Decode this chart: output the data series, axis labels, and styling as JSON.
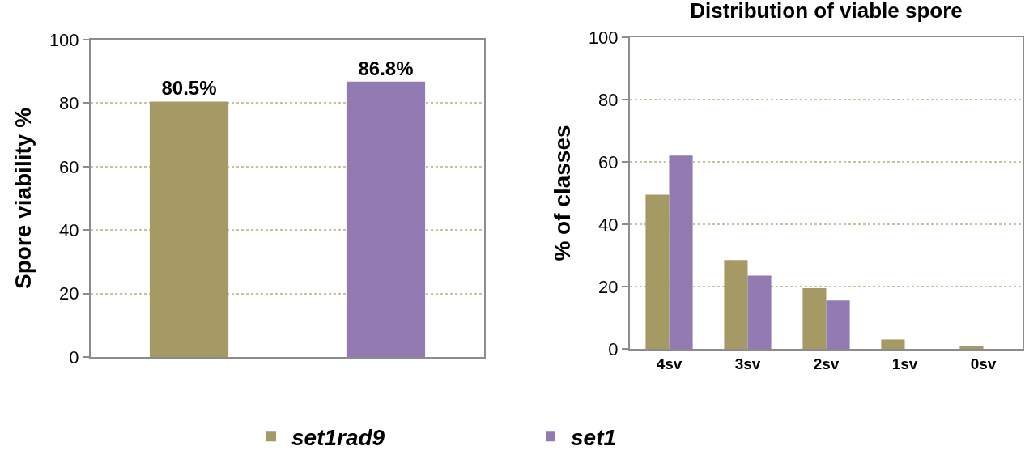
{
  "chart_data": [
    {
      "type": "bar",
      "ylabel": "Spore viability %",
      "categories": [
        null,
        null
      ],
      "values": [
        80.5,
        86.8
      ],
      "colors": [
        "#a59a63",
        "#927bb2"
      ],
      "value_labels": [
        "80.5%",
        "86.8%"
      ],
      "ylim": [
        0,
        100
      ],
      "yticks": [
        0,
        20,
        40,
        60,
        80,
        100
      ],
      "grid": "y"
    },
    {
      "type": "bar",
      "title": "Distribution of viable spore",
      "ylabel": "% of classes",
      "categories": [
        "4sv",
        "3sv",
        "2sv",
        "1sv",
        "0sv"
      ],
      "series": [
        {
          "name": "set1rad9",
          "color": "#a59a63",
          "values": [
            49.5,
            28.5,
            19.5,
            3,
            1
          ]
        },
        {
          "name": "set1",
          "color": "#927bb2",
          "values": [
            62,
            23.5,
            15.5,
            0,
            0
          ]
        }
      ],
      "ylim": [
        0,
        100
      ],
      "yticks": [
        0,
        20,
        40,
        60,
        80,
        100
      ],
      "grid": "y",
      "legend": "bottom"
    }
  ]
}
